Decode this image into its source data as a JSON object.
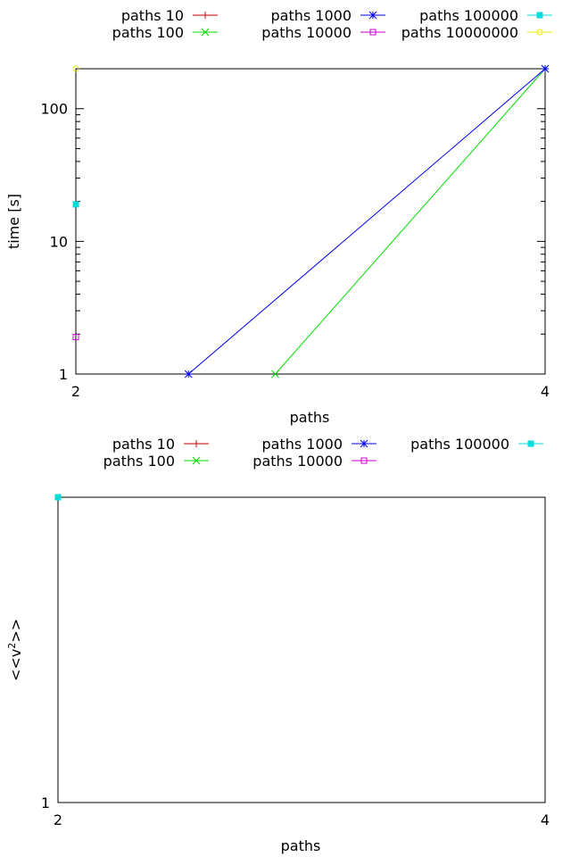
{
  "chart_data": [
    {
      "type": "line",
      "xlabel": "paths",
      "ylabel": "time [s]",
      "y_scale": "log",
      "xlim": [
        2,
        4
      ],
      "ylim": [
        1,
        200
      ],
      "x_ticks": [
        "2",
        "4"
      ],
      "y_ticks": [
        "1",
        "10",
        "100"
      ],
      "grid": false,
      "legend_position": "top",
      "series": [
        {
          "name": "paths 10",
          "color": "#cc0000",
          "marker": "plus",
          "points": []
        },
        {
          "name": "paths 100",
          "color": "#00dd00",
          "marker": "cross",
          "points": [
            [
              2.85,
              1
            ],
            [
              4,
              200
            ]
          ]
        },
        {
          "name": "paths 1000",
          "color": "#0000ee",
          "marker": "star",
          "points": [
            [
              2.48,
              1
            ],
            [
              4,
              200
            ]
          ]
        },
        {
          "name": "paths 10000",
          "color": "#cc00cc",
          "marker": "open-square",
          "points": [
            [
              2,
              1.9
            ]
          ]
        },
        {
          "name": "paths 100000",
          "color": "#00dddd",
          "marker": "filled-square",
          "points": [
            [
              2,
              19
            ]
          ]
        },
        {
          "name": "paths 10000000",
          "color": "#eeee00",
          "marker": "open-circle",
          "points": [
            [
              2,
              200
            ]
          ]
        }
      ]
    },
    {
      "type": "line",
      "xlabel": "paths",
      "ylabel": "<<v²>>",
      "ylabel_main": "<<v",
      "ylabel_sup": "2",
      "ylabel_end": ">>",
      "y_scale": "log",
      "xlim": [
        2,
        4
      ],
      "ylim": [
        1,
        1.3
      ],
      "x_ticks": [
        "2",
        "4"
      ],
      "y_ticks": [
        "1"
      ],
      "grid": false,
      "legend_position": "top",
      "series": [
        {
          "name": "paths 10",
          "color": "#cc0000",
          "marker": "plus",
          "points": []
        },
        {
          "name": "paths 100",
          "color": "#00dd00",
          "marker": "cross",
          "points": []
        },
        {
          "name": "paths 1000",
          "color": "#0000ee",
          "marker": "star",
          "points": []
        },
        {
          "name": "paths 10000",
          "color": "#cc00cc",
          "marker": "open-square",
          "points": []
        },
        {
          "name": "paths 100000",
          "color": "#00dddd",
          "marker": "filled-square",
          "points": [
            [
              2,
              1.3
            ]
          ]
        }
      ]
    }
  ]
}
